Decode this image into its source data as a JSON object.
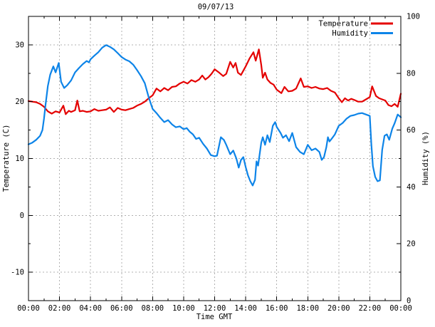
{
  "chart_data": {
    "type": "line",
    "title": "09/07/13",
    "xlabel": "Time GMT",
    "x_unit": "hours",
    "x_range": [
      0,
      24
    ],
    "grid": true,
    "legend_position": "top-right-inside",
    "colors": {
      "temperature": "#e40000",
      "humidity": "#0d84e8",
      "grid": "#b0b0b0",
      "axis": "#000000"
    },
    "axes": {
      "x": {
        "label": "Time GMT",
        "major_tick_hours": [
          0,
          2,
          4,
          6,
          8,
          10,
          12,
          14,
          16,
          18,
          20,
          22,
          24
        ],
        "major_tick_labels": [
          "00:00",
          "02:00",
          "04:00",
          "06:00",
          "08:00",
          "10:00",
          "12:00",
          "14:00",
          "16:00",
          "18:00",
          "20:00",
          "22:00",
          "00:00"
        ],
        "minor_tick_hours": [
          1,
          3,
          5,
          7,
          9,
          11,
          13,
          15,
          17,
          19,
          21,
          23
        ]
      },
      "y_left": {
        "label": "Temperature (C)",
        "range": [
          -15,
          35
        ],
        "major_tick_values": [
          30,
          20,
          10,
          0,
          -10
        ],
        "major_tick_labels": [
          "30",
          "20",
          "10",
          "0",
          "-10"
        ],
        "minor_tick_values": [
          25,
          15,
          5,
          -5
        ]
      },
      "y_right": {
        "label": "Humidity (%)",
        "range": [
          0,
          100
        ],
        "major_tick_values": [
          100,
          80,
          60,
          40,
          20,
          0
        ],
        "major_tick_labels": [
          "100",
          "80",
          "60",
          "40",
          "20",
          "0"
        ],
        "minor_tick_values": [
          90,
          70,
          50,
          30,
          10
        ]
      }
    },
    "series": [
      {
        "name": "Temperature",
        "axis": "left",
        "color": "#e40000",
        "points": [
          [
            0,
            20.1
          ],
          [
            0.25,
            20.0
          ],
          [
            0.5,
            19.9
          ],
          [
            0.75,
            19.6
          ],
          [
            1,
            19.1
          ],
          [
            1.25,
            18.3
          ],
          [
            1.5,
            17.9
          ],
          [
            1.75,
            18.3
          ],
          [
            2,
            18.1
          ],
          [
            2.25,
            19.3
          ],
          [
            2.4,
            17.8
          ],
          [
            2.6,
            18.4
          ],
          [
            2.75,
            18.2
          ],
          [
            3,
            18.5
          ],
          [
            3.15,
            20.2
          ],
          [
            3.3,
            18.3
          ],
          [
            3.5,
            18.4
          ],
          [
            3.75,
            18.2
          ],
          [
            4,
            18.3
          ],
          [
            4.25,
            18.7
          ],
          [
            4.5,
            18.4
          ],
          [
            4.75,
            18.5
          ],
          [
            5,
            18.6
          ],
          [
            5.25,
            19.0
          ],
          [
            5.5,
            18.2
          ],
          [
            5.75,
            18.9
          ],
          [
            6,
            18.6
          ],
          [
            6.25,
            18.5
          ],
          [
            6.5,
            18.7
          ],
          [
            6.75,
            18.9
          ],
          [
            7,
            19.3
          ],
          [
            7.25,
            19.6
          ],
          [
            7.5,
            20.0
          ],
          [
            7.75,
            20.6
          ],
          [
            8,
            21.1
          ],
          [
            8.25,
            22.3
          ],
          [
            8.5,
            21.8
          ],
          [
            8.75,
            22.4
          ],
          [
            9,
            22.0
          ],
          [
            9.25,
            22.6
          ],
          [
            9.5,
            22.7
          ],
          [
            9.75,
            23.2
          ],
          [
            10,
            23.5
          ],
          [
            10.25,
            23.2
          ],
          [
            10.5,
            23.8
          ],
          [
            10.75,
            23.5
          ],
          [
            11,
            23.9
          ],
          [
            11.2,
            24.6
          ],
          [
            11.4,
            23.9
          ],
          [
            11.6,
            24.3
          ],
          [
            11.8,
            24.9
          ],
          [
            12,
            25.7
          ],
          [
            12.25,
            25.2
          ],
          [
            12.55,
            24.5
          ],
          [
            12.75,
            24.9
          ],
          [
            13,
            27.0
          ],
          [
            13.2,
            26.0
          ],
          [
            13.35,
            26.8
          ],
          [
            13.5,
            25.1
          ],
          [
            13.7,
            24.7
          ],
          [
            14,
            26.2
          ],
          [
            14.25,
            27.6
          ],
          [
            14.5,
            28.7
          ],
          [
            14.65,
            27.2
          ],
          [
            14.85,
            29.2
          ],
          [
            15,
            26.5
          ],
          [
            15.1,
            24.2
          ],
          [
            15.25,
            25.1
          ],
          [
            15.4,
            23.9
          ],
          [
            15.6,
            23.3
          ],
          [
            15.8,
            23.0
          ],
          [
            16,
            22.1
          ],
          [
            16.3,
            21.5
          ],
          [
            16.5,
            22.6
          ],
          [
            16.75,
            21.8
          ],
          [
            17,
            21.9
          ],
          [
            17.25,
            22.3
          ],
          [
            17.55,
            24.1
          ],
          [
            17.75,
            22.6
          ],
          [
            18,
            22.7
          ],
          [
            18.25,
            22.4
          ],
          [
            18.5,
            22.6
          ],
          [
            18.75,
            22.3
          ],
          [
            19,
            22.2
          ],
          [
            19.25,
            22.4
          ],
          [
            19.5,
            21.9
          ],
          [
            19.75,
            21.6
          ],
          [
            20,
            20.6
          ],
          [
            20.2,
            19.9
          ],
          [
            20.4,
            20.6
          ],
          [
            20.6,
            20.2
          ],
          [
            20.8,
            20.5
          ],
          [
            21,
            20.3
          ],
          [
            21.25,
            20.0
          ],
          [
            21.5,
            20.0
          ],
          [
            21.75,
            20.4
          ],
          [
            22,
            20.8
          ],
          [
            22.15,
            22.7
          ],
          [
            22.4,
            21.0
          ],
          [
            22.6,
            20.6
          ],
          [
            22.8,
            20.4
          ],
          [
            23,
            20.2
          ],
          [
            23.2,
            19.4
          ],
          [
            23.4,
            19.2
          ],
          [
            23.6,
            19.6
          ],
          [
            23.8,
            19.1
          ],
          [
            24,
            21.4
          ]
        ]
      },
      {
        "name": "Humidity",
        "axis": "right",
        "color": "#0d84e8",
        "points": [
          [
            0,
            55.0
          ],
          [
            0.25,
            55.6
          ],
          [
            0.5,
            56.6
          ],
          [
            0.75,
            58.0
          ],
          [
            0.9,
            60.0
          ],
          [
            1,
            64.0
          ],
          [
            1.1,
            69.0
          ],
          [
            1.25,
            75.5
          ],
          [
            1.4,
            79.5
          ],
          [
            1.6,
            82.4
          ],
          [
            1.75,
            80.3
          ],
          [
            1.95,
            83.6
          ],
          [
            2.1,
            77.0
          ],
          [
            2.3,
            74.8
          ],
          [
            2.5,
            75.8
          ],
          [
            2.75,
            77.5
          ],
          [
            3,
            80.3
          ],
          [
            3.25,
            81.8
          ],
          [
            3.5,
            83.2
          ],
          [
            3.75,
            84.3
          ],
          [
            3.9,
            83.8
          ],
          [
            4,
            84.9
          ],
          [
            4.25,
            86.2
          ],
          [
            4.5,
            87.4
          ],
          [
            4.75,
            89.0
          ],
          [
            5,
            89.9
          ],
          [
            5.25,
            89.3
          ],
          [
            5.5,
            88.4
          ],
          [
            5.75,
            87.1
          ],
          [
            6,
            85.7
          ],
          [
            6.25,
            84.8
          ],
          [
            6.5,
            84.2
          ],
          [
            6.75,
            83.0
          ],
          [
            7,
            81.1
          ],
          [
            7.25,
            79.0
          ],
          [
            7.5,
            76.5
          ],
          [
            7.75,
            71.5
          ],
          [
            8,
            67.5
          ],
          [
            8.25,
            66.0
          ],
          [
            8.5,
            64.3
          ],
          [
            8.75,
            62.8
          ],
          [
            9,
            63.5
          ],
          [
            9.25,
            62.0
          ],
          [
            9.5,
            61.0
          ],
          [
            9.75,
            61.3
          ],
          [
            10,
            60.3
          ],
          [
            10.2,
            60.7
          ],
          [
            10.4,
            59.4
          ],
          [
            10.6,
            58.5
          ],
          [
            10.8,
            56.9
          ],
          [
            11,
            57.3
          ],
          [
            11.25,
            55.2
          ],
          [
            11.5,
            53.5
          ],
          [
            11.75,
            51.2
          ],
          [
            12,
            50.8
          ],
          [
            12.15,
            51.0
          ],
          [
            12.4,
            57.5
          ],
          [
            12.6,
            56.5
          ],
          [
            12.75,
            54.8
          ],
          [
            13,
            51.5
          ],
          [
            13.2,
            52.8
          ],
          [
            13.4,
            50.0
          ],
          [
            13.55,
            46.8
          ],
          [
            13.7,
            49.5
          ],
          [
            13.85,
            50.5
          ],
          [
            14,
            47.0
          ],
          [
            14.15,
            44.0
          ],
          [
            14.3,
            42.0
          ],
          [
            14.45,
            40.5
          ],
          [
            14.6,
            42.5
          ],
          [
            14.7,
            49.0
          ],
          [
            14.8,
            47.5
          ],
          [
            15,
            55.5
          ],
          [
            15.1,
            57.5
          ],
          [
            15.25,
            54.8
          ],
          [
            15.4,
            58.2
          ],
          [
            15.55,
            55.8
          ],
          [
            15.75,
            61.5
          ],
          [
            15.9,
            62.8
          ],
          [
            16,
            61.1
          ],
          [
            16.25,
            59.0
          ],
          [
            16.4,
            57.3
          ],
          [
            16.6,
            58.2
          ],
          [
            16.8,
            56.1
          ],
          [
            17,
            59.0
          ],
          [
            17.25,
            54.0
          ],
          [
            17.5,
            52.3
          ],
          [
            17.75,
            51.5
          ],
          [
            18,
            54.8
          ],
          [
            18.25,
            52.9
          ],
          [
            18.5,
            53.5
          ],
          [
            18.75,
            52.3
          ],
          [
            18.9,
            49.5
          ],
          [
            19.05,
            50.5
          ],
          [
            19.2,
            54.0
          ],
          [
            19.3,
            57.5
          ],
          [
            19.4,
            56.0
          ],
          [
            19.55,
            57.0
          ],
          [
            19.75,
            58.5
          ],
          [
            20,
            61.5
          ],
          [
            20.25,
            62.5
          ],
          [
            20.5,
            64.0
          ],
          [
            20.75,
            65.0
          ],
          [
            21,
            65.3
          ],
          [
            21.25,
            65.8
          ],
          [
            21.5,
            66.0
          ],
          [
            21.75,
            65.5
          ],
          [
            22,
            65.0
          ],
          [
            22.1,
            55.0
          ],
          [
            22.2,
            47.3
          ],
          [
            22.35,
            43.5
          ],
          [
            22.5,
            42.0
          ],
          [
            22.65,
            42.3
          ],
          [
            22.8,
            53.0
          ],
          [
            22.95,
            58.0
          ],
          [
            23.1,
            58.5
          ],
          [
            23.25,
            56.6
          ],
          [
            23.45,
            60.5
          ],
          [
            23.6,
            62.4
          ],
          [
            23.8,
            65.5
          ],
          [
            24,
            64.5
          ]
        ]
      }
    ],
    "legend": [
      {
        "label": "Temperature",
        "color": "#e40000"
      },
      {
        "label": "Humidity",
        "color": "#0d84e8"
      }
    ]
  }
}
